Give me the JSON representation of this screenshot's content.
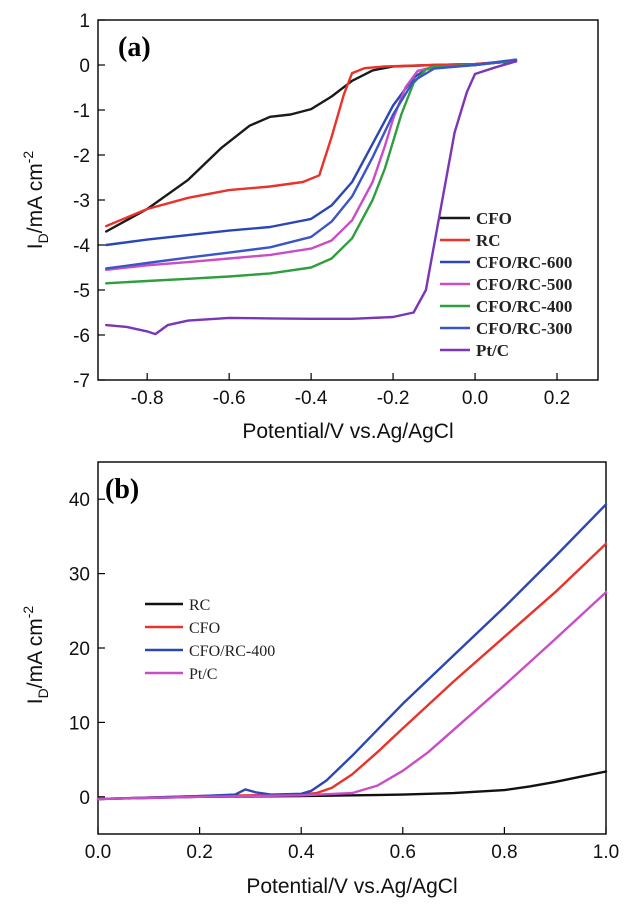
{
  "chart_data": [
    {
      "type": "line",
      "panel_label": "(a)",
      "xlabel": "Potential/V vs.Ag/AgCl",
      "ylabel_main": "I",
      "ylabel_sub": "D",
      "ylabel_rest": "/mA cm",
      "ylabel_sup": "-2",
      "xlim": [
        -0.92,
        0.3
      ],
      "ylim": [
        -7,
        1
      ],
      "xticks": [
        -0.8,
        -0.6,
        -0.4,
        -0.2,
        0.0,
        0.2
      ],
      "xtick_labels": [
        "-0.8",
        "-0.6",
        "-0.4",
        "-0.2",
        "0.0",
        "0.2"
      ],
      "yticks": [
        1,
        0,
        -1,
        -2,
        -3,
        -4,
        -5,
        -6,
        -7
      ],
      "ytick_labels": [
        "1",
        "0",
        "-1",
        "-2",
        "-3",
        "-4",
        "-5",
        "-6",
        "-7"
      ],
      "legend_position": "lower-right",
      "series": [
        {
          "name": "CFO",
          "color": "#1a1a1a",
          "x": [
            -0.9,
            -0.8,
            -0.7,
            -0.62,
            -0.55,
            -0.5,
            -0.45,
            -0.4,
            -0.35,
            -0.3,
            -0.25,
            -0.2,
            -0.1,
            0.0,
            0.1
          ],
          "y": [
            -3.7,
            -3.2,
            -2.55,
            -1.85,
            -1.35,
            -1.15,
            -1.1,
            -0.98,
            -0.7,
            -0.35,
            -0.12,
            -0.03,
            0.0,
            0.02,
            0.08
          ]
        },
        {
          "name": "RC",
          "color": "#e8322a",
          "x": [
            -0.9,
            -0.8,
            -0.7,
            -0.6,
            -0.5,
            -0.42,
            -0.38,
            -0.35,
            -0.32,
            -0.3,
            -0.27,
            -0.22,
            -0.1,
            0.0,
            0.1
          ],
          "y": [
            -3.58,
            -3.2,
            -2.95,
            -2.78,
            -2.7,
            -2.6,
            -2.45,
            -1.6,
            -0.65,
            -0.18,
            -0.07,
            -0.03,
            0.0,
            0.02,
            0.1
          ]
        },
        {
          "name": "CFO/RC-600",
          "color": "#2a47b5",
          "x": [
            -0.9,
            -0.8,
            -0.7,
            -0.6,
            -0.5,
            -0.4,
            -0.35,
            -0.3,
            -0.25,
            -0.2,
            -0.15,
            -0.12,
            -0.1,
            0.0,
            0.1
          ],
          "y": [
            -4.0,
            -3.88,
            -3.78,
            -3.68,
            -3.6,
            -3.42,
            -3.12,
            -2.6,
            -1.75,
            -0.9,
            -0.28,
            -0.1,
            -0.05,
            0.0,
            0.1
          ]
        },
        {
          "name": "CFO/RC-500",
          "color": "#c94dc4",
          "x": [
            -0.9,
            -0.8,
            -0.7,
            -0.6,
            -0.5,
            -0.4,
            -0.35,
            -0.3,
            -0.25,
            -0.22,
            -0.2,
            -0.17,
            -0.14,
            -0.1,
            0.0,
            0.1
          ],
          "y": [
            -4.55,
            -4.45,
            -4.38,
            -4.3,
            -4.22,
            -4.08,
            -3.9,
            -3.45,
            -2.6,
            -1.8,
            -1.2,
            -0.5,
            -0.13,
            -0.04,
            0.0,
            0.1
          ]
        },
        {
          "name": "CFO/RC-400",
          "color": "#2e9e3e",
          "x": [
            -0.9,
            -0.8,
            -0.7,
            -0.6,
            -0.5,
            -0.4,
            -0.35,
            -0.3,
            -0.25,
            -0.22,
            -0.2,
            -0.18,
            -0.15,
            -0.12,
            -0.1,
            0.0,
            0.1
          ],
          "y": [
            -4.85,
            -4.8,
            -4.75,
            -4.7,
            -4.63,
            -4.5,
            -4.3,
            -3.85,
            -3.0,
            -2.3,
            -1.7,
            -1.1,
            -0.4,
            -0.1,
            -0.04,
            0.0,
            0.1
          ]
        },
        {
          "name": "CFO/RC-300",
          "color": "#3a55c8",
          "x": [
            -0.9,
            -0.8,
            -0.7,
            -0.6,
            -0.5,
            -0.4,
            -0.35,
            -0.3,
            -0.25,
            -0.2,
            -0.15,
            -0.1,
            0.0,
            0.1
          ],
          "y": [
            -4.52,
            -4.4,
            -4.28,
            -4.17,
            -4.05,
            -3.82,
            -3.48,
            -2.92,
            -2.05,
            -1.1,
            -0.35,
            -0.08,
            0.0,
            0.12
          ]
        },
        {
          "name": "Pt/C",
          "color": "#7a35b8",
          "x": [
            -0.9,
            -0.85,
            -0.8,
            -0.78,
            -0.75,
            -0.7,
            -0.6,
            -0.5,
            -0.4,
            -0.3,
            -0.2,
            -0.15,
            -0.12,
            -0.1,
            -0.07,
            -0.05,
            -0.02,
            0.0,
            0.05,
            0.1
          ],
          "y": [
            -5.78,
            -5.82,
            -5.92,
            -5.98,
            -5.78,
            -5.68,
            -5.62,
            -5.63,
            -5.64,
            -5.64,
            -5.6,
            -5.5,
            -5.0,
            -4.0,
            -2.5,
            -1.5,
            -0.6,
            -0.2,
            -0.05,
            0.08
          ]
        }
      ]
    },
    {
      "type": "line",
      "panel_label": "(b)",
      "xlabel": "Potential/V vs.Ag/AgCl",
      "ylabel_main": "I",
      "ylabel_sub": "D",
      "ylabel_rest": "/mA cm",
      "ylabel_sup": "-2",
      "xlim": [
        0.0,
        1.0
      ],
      "ylim": [
        -5,
        45
      ],
      "xticks": [
        0.0,
        0.2,
        0.4,
        0.6,
        0.8,
        1.0
      ],
      "xtick_labels": [
        "0.0",
        "0.2",
        "0.4",
        "0.6",
        "0.8",
        "1.0"
      ],
      "yticks": [
        0,
        10,
        20,
        30,
        40
      ],
      "ytick_labels": [
        "0",
        "10",
        "20",
        "30",
        "40"
      ],
      "legend_position": "middle-left",
      "series": [
        {
          "name": "RC",
          "color": "#111111",
          "x": [
            0.0,
            0.2,
            0.4,
            0.6,
            0.7,
            0.8,
            0.85,
            0.9,
            0.95,
            1.0
          ],
          "y": [
            -0.3,
            0.0,
            0.1,
            0.3,
            0.5,
            0.9,
            1.4,
            2.0,
            2.7,
            3.4
          ]
        },
        {
          "name": "CFO",
          "color": "#e8322a",
          "x": [
            0.0,
            0.2,
            0.3,
            0.4,
            0.43,
            0.46,
            0.5,
            0.55,
            0.6,
            0.7,
            0.8,
            0.9,
            1.0
          ],
          "y": [
            -0.3,
            0.1,
            0.2,
            0.3,
            0.5,
            1.2,
            3.0,
            6.0,
            9.2,
            15.5,
            21.5,
            27.5,
            34.0
          ]
        },
        {
          "name": "CFO/RC-400",
          "color": "#2a47b5",
          "x": [
            0.0,
            0.2,
            0.27,
            0.29,
            0.31,
            0.34,
            0.4,
            0.42,
            0.45,
            0.5,
            0.55,
            0.6,
            0.7,
            0.8,
            0.9,
            1.0
          ],
          "y": [
            -0.3,
            0.1,
            0.3,
            1.0,
            0.6,
            0.3,
            0.4,
            0.8,
            2.2,
            5.5,
            9.0,
            12.5,
            19.0,
            25.5,
            32.3,
            39.3
          ]
        },
        {
          "name": "Pt/C",
          "color": "#c94dc4",
          "x": [
            0.0,
            0.2,
            0.4,
            0.5,
            0.55,
            0.6,
            0.65,
            0.7,
            0.8,
            0.9,
            1.0
          ],
          "y": [
            -0.3,
            0.0,
            0.2,
            0.5,
            1.5,
            3.5,
            6.0,
            9.0,
            15.0,
            21.2,
            27.5
          ]
        }
      ]
    }
  ]
}
